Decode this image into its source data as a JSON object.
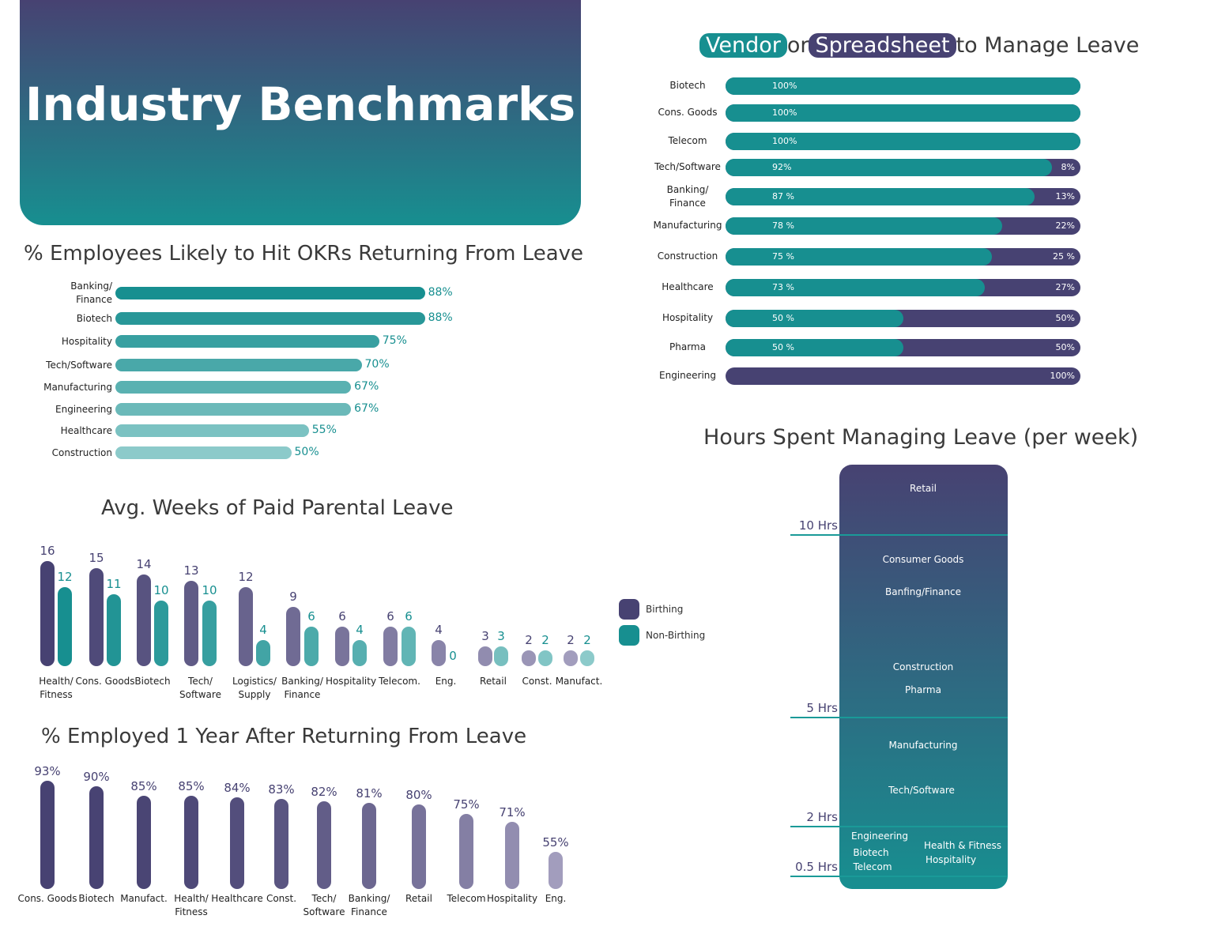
{
  "header": {
    "title": "Industry Benchmarks"
  },
  "colors": {
    "purple": "#474272",
    "teal": "#178f90"
  },
  "chart_data": [
    {
      "type": "bar",
      "orientation": "horizontal",
      "title": "% Employees Likely to Hit OKRs Returning From Leave",
      "categories": [
        "Banking/ Finance",
        "Biotech",
        "Hospitality",
        "Tech/Software",
        "Manufacturing",
        "Engineering",
        "Healthcare",
        "Construction"
      ],
      "values": [
        88,
        88,
        75,
        70,
        67,
        67,
        55,
        50
      ],
      "labels": [
        "88%",
        "88%",
        "75%",
        "70%",
        "67%",
        "67%",
        "55%",
        "50%"
      ],
      "xlim": [
        0,
        100
      ]
    },
    {
      "type": "bar",
      "orientation": "horizontal",
      "stacked": true,
      "title_parts": [
        "Vendor",
        "or",
        "Spreadsheet",
        "to Manage Leave"
      ],
      "categories": [
        "Biotech",
        "Cons. Goods",
        "Telecom",
        "Tech/Software",
        "Banking/ Finance",
        "Manufacturing",
        "Construction",
        "Healthcare",
        "Hospitality",
        "Pharma",
        "Engineering"
      ],
      "series": [
        {
          "name": "Vendor",
          "color": "#178f90",
          "values": [
            100,
            100,
            100,
            92,
            87,
            78,
            75,
            73,
            50,
            50,
            0
          ],
          "labels": [
            "100%",
            "100%",
            "100%",
            "92%",
            "87 %",
            "78 %",
            "75 %",
            "73 %",
            "50  %",
            "50  %",
            ""
          ]
        },
        {
          "name": "Spreadsheet",
          "color": "#474272",
          "values": [
            0,
            0,
            0,
            8,
            13,
            22,
            25,
            27,
            50,
            50,
            100
          ],
          "labels": [
            "",
            "",
            "",
            "8%",
            "13%",
            "22%",
            "25 %",
            "27%",
            "50%",
            "50%",
            "100%"
          ]
        }
      ]
    },
    {
      "type": "bar",
      "title": "Avg. Weeks of Paid Parental Leave",
      "categories": [
        "Health/ Fitness",
        "Cons. Goods",
        "Biotech",
        "Tech/ Software",
        "Logistics/ Supply",
        "Banking/ Finance",
        "Hospitality",
        "Telecom.",
        "Eng.",
        "Retail",
        "Const.",
        "Manufact."
      ],
      "series": [
        {
          "name": "Birthing",
          "color": "#474272",
          "values": [
            16,
            15,
            14,
            13,
            12,
            9,
            6,
            6,
            4,
            3,
            2,
            2
          ]
        },
        {
          "name": "Non-Birthing",
          "color": "#178f90",
          "values": [
            12,
            11,
            10,
            10,
            4,
            6,
            4,
            6,
            0,
            3,
            2,
            2
          ]
        }
      ],
      "legend": "right"
    },
    {
      "type": "bar",
      "title": "% Employed 1 Year After Returning From Leave",
      "categories": [
        "Cons. Goods",
        "Biotech",
        "Manufact.",
        "Health/ Fitness",
        "Healthcare",
        "Const.",
        "Tech/ Software",
        "Banking/ Finance",
        "Retail",
        "Telecom",
        "Hospitality",
        "Eng."
      ],
      "values": [
        93,
        90,
        85,
        85,
        84,
        83,
        82,
        81,
        80,
        75,
        71,
        55
      ],
      "labels": [
        "93%",
        "90%",
        "85%",
        "85%",
        "84%",
        "83%",
        "82%",
        "81%",
        "80%",
        "75%",
        "71%",
        "55%"
      ]
    },
    {
      "type": "table",
      "title": "Hours Spent Managing Leave (per week)",
      "ticks": [
        "10 Hrs",
        "5 Hrs",
        "2 Hrs",
        "0.5 Hrs"
      ],
      "bands": [
        {
          "range": "over 10 Hrs",
          "industries": [
            "Retail"
          ]
        },
        {
          "range": "5-10 Hrs",
          "industries": [
            "Consumer Goods",
            "Banfing/Finance",
            "Construction",
            "Pharma"
          ]
        },
        {
          "range": "2-5 Hrs",
          "industries": [
            "Manufacturing",
            "Tech/Software"
          ]
        },
        {
          "range": "under 2 Hrs",
          "industries": [
            "Engineering",
            "Biotech",
            "Telecom",
            "Health & Fitness",
            "Hospitality"
          ]
        }
      ]
    }
  ]
}
